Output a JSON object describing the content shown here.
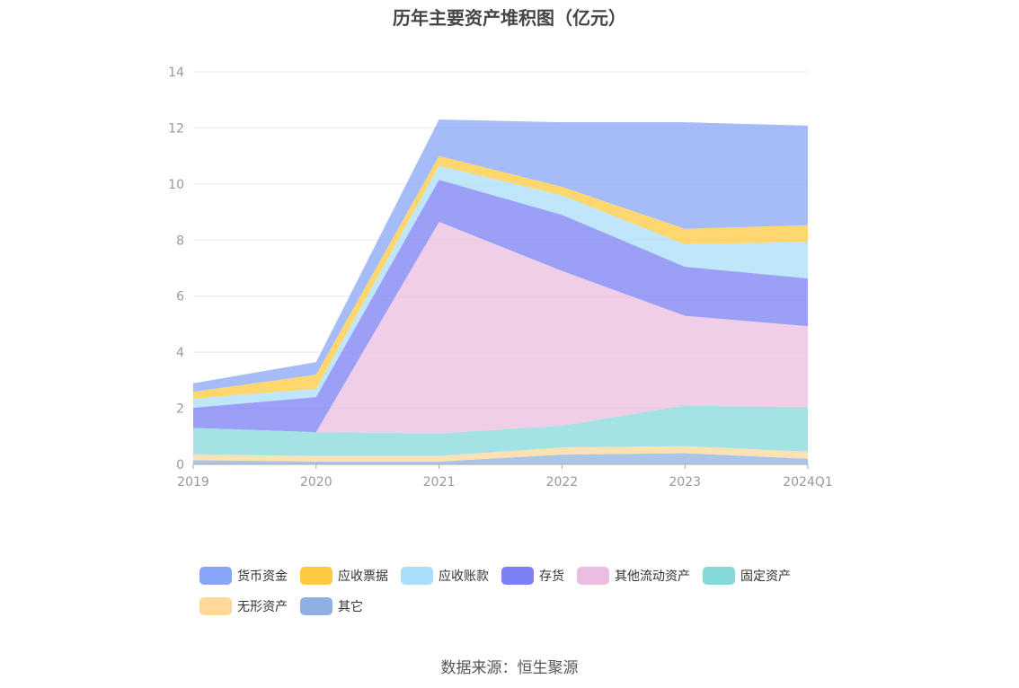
{
  "chart_data": {
    "type": "area",
    "title": "历年主要资产堆积图（亿元）",
    "x": [
      "2019",
      "2020",
      "2021",
      "2022",
      "2023",
      "2024Q1"
    ],
    "ylim": [
      0,
      14
    ],
    "yticks": [
      0,
      2,
      4,
      6,
      8,
      10,
      12,
      14
    ],
    "grid": true,
    "legend_position": "bottom",
    "stacked": true,
    "series": [
      {
        "name": "其它",
        "color": "#8fb0e0",
        "values": [
          0.15,
          0.1,
          0.1,
          0.35,
          0.4,
          0.2
        ]
      },
      {
        "name": "无形资产",
        "color": "#ffd89a",
        "values": [
          0.2,
          0.2,
          0.2,
          0.25,
          0.25,
          0.25
        ]
      },
      {
        "name": "固定资产",
        "color": "#86d9d9",
        "values": [
          0.95,
          0.85,
          0.8,
          0.78,
          1.45,
          1.58
        ]
      },
      {
        "name": "其他流动资产",
        "color": "#ebbde0",
        "values": [
          0.0,
          0.0,
          7.55,
          5.52,
          3.2,
          2.9
        ]
      },
      {
        "name": "存货",
        "color": "#7b7ff3",
        "values": [
          0.72,
          1.25,
          1.5,
          2.0,
          1.75,
          1.7
        ]
      },
      {
        "name": "应收账款",
        "color": "#a9def8",
        "values": [
          0.32,
          0.3,
          0.5,
          0.7,
          0.8,
          1.3
        ]
      },
      {
        "name": "应收票据",
        "color": "#ffc93f",
        "values": [
          0.25,
          0.5,
          0.35,
          0.3,
          0.55,
          0.6
        ]
      },
      {
        "name": "货币资金",
        "color": "#87a6f7",
        "values": [
          0.3,
          0.45,
          1.3,
          2.3,
          3.8,
          3.55
        ]
      }
    ]
  },
  "legend_order": [
    {
      "name": "货币资金",
      "color": "#87a6f7"
    },
    {
      "name": "应收票据",
      "color": "#ffc93f"
    },
    {
      "name": "应收账款",
      "color": "#a9def8"
    },
    {
      "name": "存货",
      "color": "#7b7ff3"
    },
    {
      "name": "其他流动资产",
      "color": "#ebbde0"
    },
    {
      "name": "固定资产",
      "color": "#86d9d9"
    },
    {
      "name": "无形资产",
      "color": "#ffd89a"
    },
    {
      "name": "其它",
      "color": "#8fb0e0"
    }
  ],
  "source": "数据来源：恒生聚源"
}
